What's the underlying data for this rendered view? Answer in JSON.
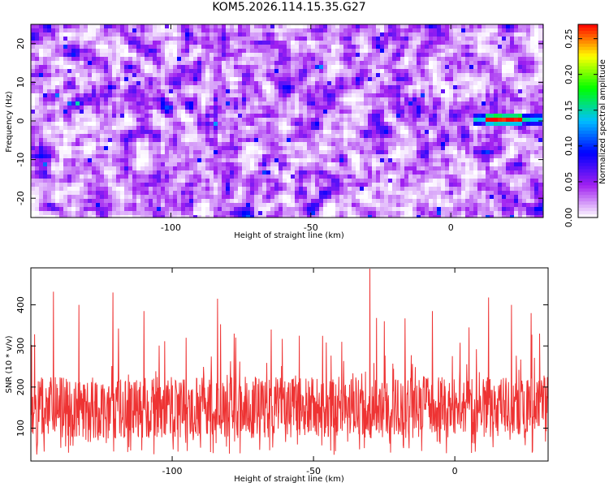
{
  "title": "KOM5.2026.114.15.35.G27",
  "chart_data": [
    {
      "type": "heatmap",
      "xlabel": "Height of straight line (km)",
      "ylabel": "Frequency (Hz)",
      "xlim": [
        -150,
        33
      ],
      "ylim": [
        -25,
        25
      ],
      "x_ticks": [
        -100,
        -50,
        0
      ],
      "y_ticks": [
        -20,
        -10,
        0,
        10,
        20
      ],
      "colorbar": {
        "label": "Normalized spectral amplitude",
        "range": [
          0.0,
          0.27
        ],
        "ticks": [
          0.0,
          0.05,
          0.1,
          0.15,
          0.2,
          0.25
        ],
        "tick_labels": [
          "0.00",
          "0.05",
          "0.10",
          "0.15",
          "0.20",
          "0.25"
        ],
        "colormap": [
          "#ffffff",
          "#a020f0",
          "#0000ff",
          "#00bfff",
          "#00ff00",
          "#ffff00",
          "#ff0000"
        ]
      },
      "hot_ridge": {
        "x_range": [
          10,
          33
        ],
        "y": 0.4,
        "peak_amplitude": 0.27
      },
      "background_amplitude": 0.03
    },
    {
      "type": "line",
      "xlabel": "Height of straight line (km)",
      "ylabel": "SNR (10 * v/v)",
      "xlim": [
        -150,
        33
      ],
      "ylim": [
        20,
        490
      ],
      "x_ticks": [
        -100,
        -50,
        0
      ],
      "y_ticks": [
        100,
        200,
        300,
        400
      ],
      "color": "#ee3333",
      "mean": 150,
      "peaks": [
        {
          "x": -142,
          "y": 432
        },
        {
          "x": -121,
          "y": 430
        },
        {
          "x": -30,
          "y": 488
        },
        {
          "x": -84,
          "y": 415
        },
        {
          "x": 12,
          "y": 418
        },
        {
          "x": 20,
          "y": 400
        },
        {
          "x": -133,
          "y": 400
        },
        {
          "x": -110,
          "y": 385
        },
        {
          "x": -8,
          "y": 385
        },
        {
          "x": 27,
          "y": 380
        },
        {
          "x": -25,
          "y": 360
        },
        {
          "x": -65,
          "y": 340
        },
        {
          "x": -78,
          "y": 330
        },
        {
          "x": 5,
          "y": 345
        },
        {
          "x": -95,
          "y": 320
        },
        {
          "x": -55,
          "y": 325
        },
        {
          "x": -40,
          "y": 310
        },
        {
          "x": 30,
          "y": 330
        }
      ]
    }
  ]
}
